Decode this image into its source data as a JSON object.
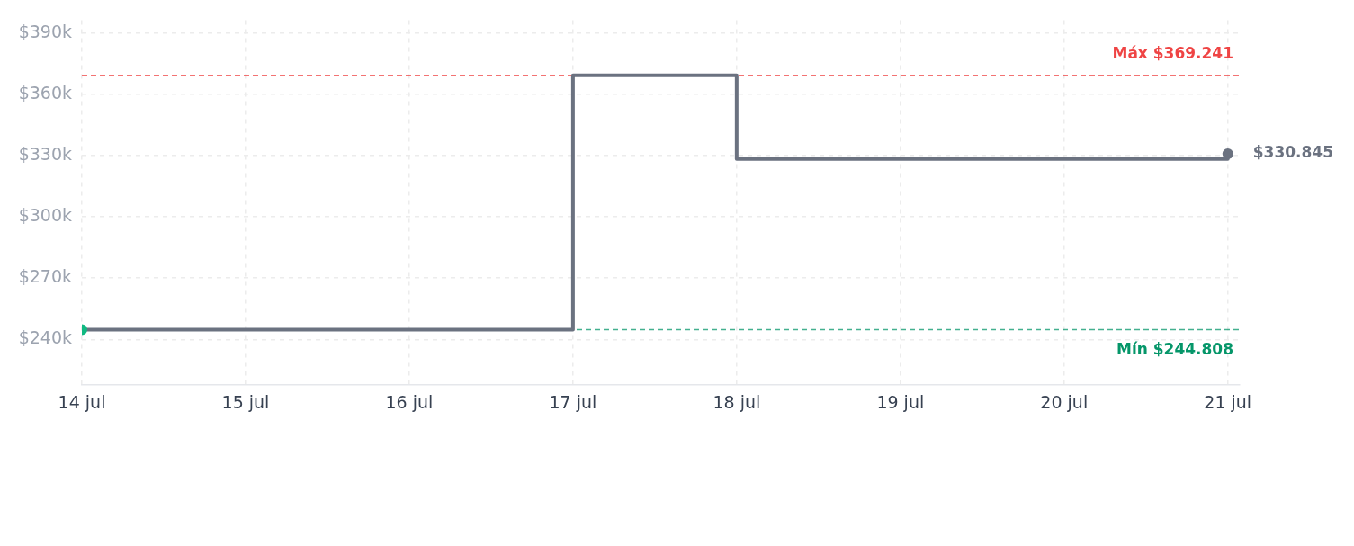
{
  "chart_data": {
    "type": "step",
    "x": [
      "--07-14",
      "--07-17",
      "--07-18",
      "--07-21"
    ],
    "series": [
      {
        "color": "#6b7280",
        "values": [
          244808,
          369241,
          328300,
          330845
        ]
      },
      {
        "type": "scatter",
        "color": "#10b981",
        "marker": "circle",
        "x": [
          "--07-14"
        ],
        "values": [
          244808
        ]
      },
      {
        "type": "scatter",
        "color": "#6b7280",
        "marker": "circle",
        "x": [
          "--07-21"
        ],
        "values": [
          330845
        ]
      }
    ],
    "xlim": [
      "--07-14",
      "--07-21T01:45"
    ],
    "xticks": [
      {
        "value": "--07-14",
        "label": "14 jul"
      },
      {
        "value": "--07-15",
        "label": "15 jul"
      },
      {
        "value": "--07-16",
        "label": "16 jul"
      },
      {
        "value": "--07-17",
        "label": "17 jul"
      },
      {
        "value": "--07-18",
        "label": "18 jul"
      },
      {
        "value": "--07-19",
        "label": "19 jul"
      },
      {
        "value": "--07-20",
        "label": "20 jul"
      },
      {
        "value": "--07-21",
        "label": "21 jul"
      }
    ],
    "ylim": [
      217700,
      396300
    ],
    "yticks": [
      {
        "value": 240000,
        "label": "$240k"
      },
      {
        "value": 270000,
        "label": "$270k"
      },
      {
        "value": 300000,
        "label": "$300k"
      },
      {
        "value": 330000,
        "label": "$330k"
      },
      {
        "value": 360000,
        "label": "$360k"
      },
      {
        "value": 390000,
        "label": "$390k"
      }
    ],
    "grid": true,
    "ref_lines": [
      {
        "axis": "y",
        "value": 369241,
        "label": "Máx $369.241",
        "color": "#ef4444",
        "line_style": "dashed"
      },
      {
        "axis": "y",
        "value": 244808,
        "label": "Mín $244.808",
        "color": "#059669",
        "line_style": "dashed"
      }
    ],
    "annotations": [
      {
        "text": "$330.845",
        "x": "--07-21",
        "y": 330845
      }
    ]
  }
}
